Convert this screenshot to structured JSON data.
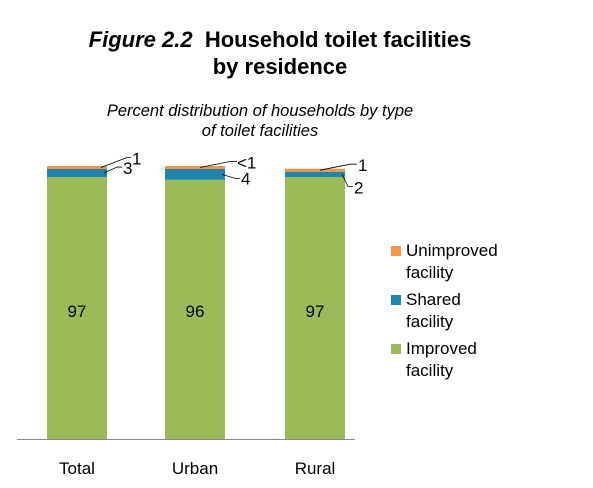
{
  "title": {
    "figure": "Figure 2.2",
    "text_line1": "Household toilet facilities",
    "text_line2": "by residence"
  },
  "subtitle": {
    "line1": "Percent distribution of households by type",
    "line2": "of toilet facilities"
  },
  "colors": {
    "unimproved": "#F79646",
    "shared": "#1F85AD",
    "improved": "#9BBB59"
  },
  "chart_data": {
    "type": "bar",
    "stacked": true,
    "title": "Household toilet facilities by residence",
    "subtitle": "Percent distribution of households by type of toilet facilities",
    "categories": [
      "Total",
      "Urban",
      "Rural"
    ],
    "series": [
      {
        "name": "Improved facility",
        "values": [
          97,
          96,
          97
        ],
        "labels": [
          "97",
          "96",
          "97"
        ],
        "color": "#9BBB59"
      },
      {
        "name": "Shared facility",
        "values": [
          3,
          4,
          2
        ],
        "labels": [
          "3",
          "4",
          "2"
        ],
        "color": "#1F85AD"
      },
      {
        "name": "Unimproved facility",
        "values": [
          1,
          0.4,
          1
        ],
        "labels": [
          "1",
          "<1",
          "1"
        ],
        "color": "#F79646"
      }
    ],
    "ylim": [
      0,
      100
    ],
    "grid": false,
    "legend_position": "right"
  },
  "legend": [
    {
      "name": "Unimproved",
      "name2": "facility",
      "color": "#F79646"
    },
    {
      "name": "Shared",
      "name2": "facility",
      "color": "#1F85AD"
    },
    {
      "name": "Improved",
      "name2": "facility",
      "color": "#9BBB59"
    }
  ]
}
